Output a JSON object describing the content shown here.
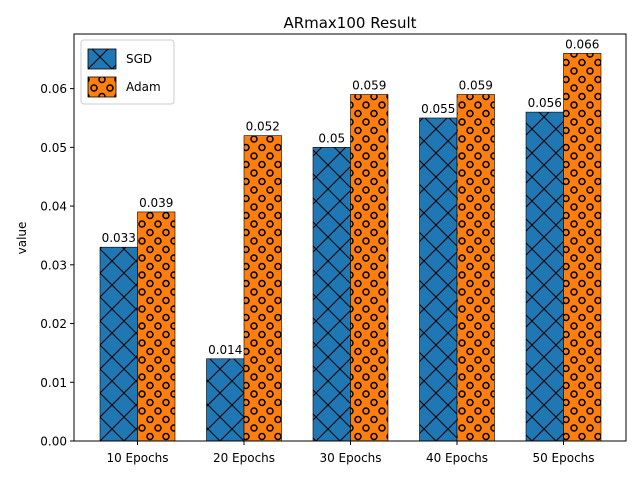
{
  "chart_data": {
    "type": "bar",
    "title": "ARmax100 Result",
    "xlabel": "",
    "ylabel": "value",
    "categories": [
      "10 Epochs",
      "20 Epochs",
      "30 Epochs",
      "40 Epochs",
      "50 Epochs"
    ],
    "series": [
      {
        "name": "SGD",
        "values": [
          0.033,
          0.014,
          0.05,
          0.055,
          0.056
        ],
        "labels": [
          "0.033",
          "0.014",
          "0.05",
          "0.055",
          "0.056"
        ],
        "color": "#1f77b4",
        "hatch": "cross-diagonal"
      },
      {
        "name": "Adam",
        "values": [
          0.039,
          0.052,
          0.059,
          0.059,
          0.066
        ],
        "labels": [
          "0.039",
          "0.052",
          "0.059",
          "0.059",
          "0.066"
        ],
        "color": "#ff7f0e",
        "hatch": "circles"
      }
    ],
    "ylim": [
      0,
      0.0693
    ],
    "yticks": [
      0.0,
      0.01,
      0.02,
      0.03,
      0.04,
      0.05,
      0.06
    ],
    "ytick_labels": [
      "0.00",
      "0.01",
      "0.02",
      "0.03",
      "0.04",
      "0.05",
      "0.06"
    ],
    "grid": false,
    "legend_position": "top-left"
  }
}
